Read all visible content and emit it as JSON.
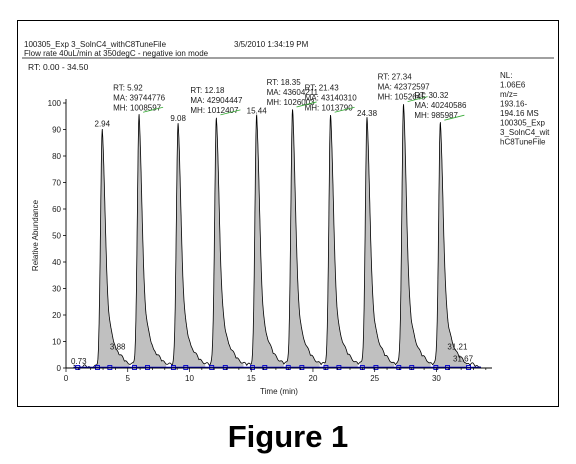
{
  "header": {
    "file": "100305_Exp 3_SolnC4_withC8TuneFile",
    "datetime": "3/5/2010 1:34:19 PM",
    "conditions": "Flow rate 40uL/min at 350degC - negative ion mode",
    "rt_range": "RT: 0.00 - 34.50"
  },
  "nl_box": [
    "NL:",
    "1.06E6",
    "m/z=",
    "193.16-",
    "194.16 MS",
    "100305_Exp",
    "3_SolnC4_wit",
    "hC8TuneFile"
  ],
  "caption": "Figure 1",
  "colors": {
    "peak_fill": "#c0c0c0",
    "trace": "#000000",
    "baseline": "#0000cc",
    "label_rule": "#33aa33"
  },
  "chart_data": {
    "type": "area",
    "xlabel": "Time (min)",
    "ylabel": "Relative Abundance",
    "xlim": [
      0,
      34.5
    ],
    "ylim": [
      0,
      100
    ],
    "x_ticks": [
      0,
      5,
      10,
      15,
      20,
      25,
      30
    ],
    "y_ticks": [
      0,
      10,
      20,
      30,
      40,
      50,
      60,
      70,
      80,
      90,
      100
    ],
    "peaks": [
      {
        "rt": 2.94,
        "height": 90
      },
      {
        "rt": 5.92,
        "height": 95,
        "ma": "39744776",
        "mh": "1008597"
      },
      {
        "rt": 9.08,
        "height": 92
      },
      {
        "rt": 12.18,
        "height": 94,
        "ma": "42904447",
        "mh": "1012407"
      },
      {
        "rt": 15.44,
        "height": 95
      },
      {
        "rt": 18.35,
        "height": 97,
        "ma": "43604211",
        "mh": "1026003"
      },
      {
        "rt": 21.43,
        "height": 95,
        "ma": "43140310",
        "mh": "1013790"
      },
      {
        "rt": 24.38,
        "height": 94
      },
      {
        "rt": 27.34,
        "height": 99,
        "ma": "42372597",
        "mh": "1052645"
      },
      {
        "rt": 30.32,
        "height": 92,
        "ma": "40240586",
        "mh": "985987"
      }
    ],
    "annotations": [
      {
        "text": "0.73",
        "x": 0.73,
        "y": 1.5
      },
      {
        "text": "3.88",
        "x": 3.88,
        "y": 7
      },
      {
        "text": "31.21",
        "x": 31.21,
        "y": 7
      },
      {
        "text": "31.67",
        "x": 31.67,
        "y": 2.5
      }
    ]
  }
}
